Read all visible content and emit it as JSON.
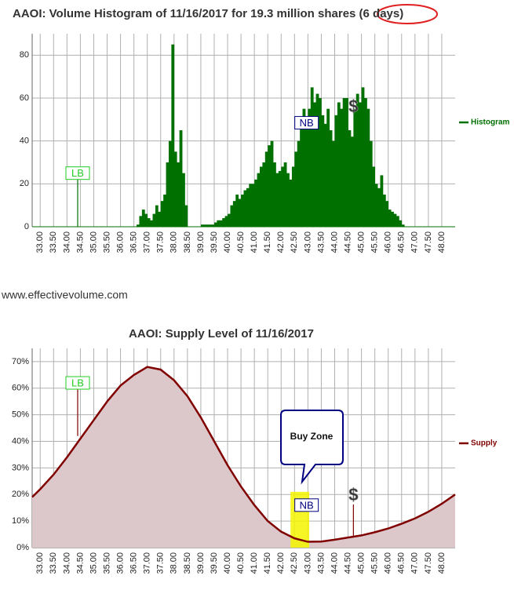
{
  "watermark": "www.effectivevolume.com",
  "chart_data": [
    {
      "type": "histogram",
      "title": "AAOI: Volume Histogram of 11/16/2017 for 19.3 million shares (6 days)",
      "name": "Histogram",
      "color": "#007000",
      "legend": "right",
      "grid": true,
      "bins": [
        36.6,
        36.7,
        36.8,
        36.9,
        37.0,
        37.1,
        37.2,
        37.3,
        37.4,
        37.5,
        37.6,
        37.7,
        37.8,
        37.9,
        38.0,
        38.1,
        38.2,
        38.3,
        38.4,
        38.5,
        38.6,
        38.7,
        38.8,
        38.9,
        39.0,
        39.1,
        39.2,
        39.3,
        39.4,
        39.5,
        39.6,
        39.7,
        39.8,
        39.9,
        40.0,
        40.1,
        40.2,
        40.3,
        40.4,
        40.5,
        40.6,
        40.7,
        40.8,
        40.9,
        41.0,
        41.1,
        41.2,
        41.3,
        41.4,
        41.5,
        41.6,
        41.7,
        41.8,
        41.9,
        42.0,
        42.1,
        42.2,
        42.3,
        42.4,
        42.5,
        42.6,
        42.7,
        42.8,
        42.9,
        43.0,
        43.1,
        43.2,
        43.3,
        43.4,
        43.5,
        43.6,
        43.7,
        43.8,
        43.9,
        44.0,
        44.1,
        44.2,
        44.3,
        44.4,
        44.5,
        44.6,
        44.7,
        44.8,
        44.9,
        45.0,
        45.1,
        45.2,
        45.3,
        45.4,
        45.5,
        45.6,
        45.7,
        45.8,
        45.9,
        46.0,
        46.1,
        46.2,
        46.3,
        46.4,
        46.5,
        46.6
      ],
      "counts": [
        1,
        5,
        8,
        6,
        4,
        3,
        6,
        10,
        7,
        12,
        15,
        30,
        40,
        85,
        35,
        30,
        45,
        25,
        10,
        0,
        0,
        0,
        0,
        0,
        1,
        1,
        1,
        1,
        1,
        2,
        3,
        3,
        4,
        5,
        6,
        10,
        12,
        15,
        13,
        15,
        17,
        18,
        20,
        20,
        22,
        25,
        28,
        30,
        35,
        38,
        40,
        30,
        25,
        26,
        28,
        30,
        25,
        22,
        28,
        35,
        40,
        48,
        55,
        50,
        55,
        65,
        58,
        62,
        60,
        52,
        48,
        55,
        45,
        40,
        52,
        58,
        55,
        60,
        60,
        45,
        42,
        55,
        62,
        58,
        65,
        60,
        55,
        40,
        28,
        20,
        18,
        24,
        15,
        12,
        8,
        7,
        6,
        5,
        3,
        1
      ],
      "xlim": [
        32.7,
        48.5
      ],
      "ylim": [
        0,
        90
      ],
      "yticks": [
        0,
        20,
        40,
        60,
        80
      ],
      "xticks": [
        {
          "value": 33,
          "label": "33.00"
        },
        {
          "value": 33.5,
          "label": "33.50"
        },
        {
          "value": 34,
          "label": "34.00"
        },
        {
          "value": 34.5,
          "label": "34.50"
        },
        {
          "value": 35,
          "label": "35.00"
        },
        {
          "value": 35.5,
          "label": "35.50"
        },
        {
          "value": 36,
          "label": "36.00"
        },
        {
          "value": 36.5,
          "label": "36.50"
        },
        {
          "value": 37,
          "label": "37.00"
        },
        {
          "value": 37.5,
          "label": "37.50"
        },
        {
          "value": 38,
          "label": "38.00"
        },
        {
          "value": 38.5,
          "label": "38.50"
        },
        {
          "value": 39,
          "label": "39.00"
        },
        {
          "value": 39.5,
          "label": "39.50"
        },
        {
          "value": 40,
          "label": "40.00"
        },
        {
          "value": 40.5,
          "label": "40.50"
        },
        {
          "value": 41,
          "label": "41.00"
        },
        {
          "value": 41.5,
          "label": "41.50"
        },
        {
          "value": 42,
          "label": "42.00"
        },
        {
          "value": 42.5,
          "label": "42.50"
        },
        {
          "value": 43,
          "label": "43.00"
        },
        {
          "value": 43.5,
          "label": "43.50"
        },
        {
          "value": 44,
          "label": "44.00"
        },
        {
          "value": 44.5,
          "label": "44.50"
        },
        {
          "value": 45,
          "label": "45.00"
        },
        {
          "value": 45.5,
          "label": "45.50"
        },
        {
          "value": 46,
          "label": "46.00"
        },
        {
          "value": 46.5,
          "label": "46.50"
        },
        {
          "value": 47,
          "label": "47.00"
        },
        {
          "value": 47.5,
          "label": "47.50"
        },
        {
          "value": 48,
          "label": "48.00"
        }
      ],
      "annotations": [
        {
          "text": "LB",
          "x": 34.4,
          "y": 25,
          "base": 0,
          "box": true,
          "color": "#22cc22",
          "line_color": "#007000"
        },
        {
          "text": "NB",
          "x": 42.95,
          "y": 48.5,
          "box": true,
          "color": "#000080"
        },
        {
          "text": "$",
          "x": 44.7,
          "y": 55.5,
          "box": false,
          "color": "#333333"
        }
      ]
    },
    {
      "type": "area",
      "title": "AAOI: Supply Level of 11/16/2017",
      "name": "Supply",
      "color": "#800000",
      "fill": "#dcc7cb",
      "legend": "right",
      "grid": true,
      "x": [
        32.7,
        33.0,
        33.5,
        34.0,
        34.5,
        35.0,
        35.5,
        36.0,
        36.5,
        37.0,
        37.5,
        38.0,
        38.5,
        39.0,
        39.5,
        40.0,
        40.5,
        41.0,
        41.5,
        42.0,
        42.5,
        43.0,
        43.5,
        44.0,
        44.5,
        45.0,
        45.5,
        46.0,
        46.5,
        47.0,
        47.5,
        48.0,
        48.5
      ],
      "values": [
        19,
        22,
        27.5,
        34,
        41,
        48,
        55,
        61,
        65,
        68,
        67,
        63,
        57,
        49,
        40,
        31,
        23,
        16,
        10,
        6,
        3.5,
        2.2,
        2.3,
        3,
        3.8,
        4.6,
        5.8,
        7.2,
        9,
        11,
        13.5,
        16.5,
        20
      ],
      "xlim": [
        32.7,
        48.5
      ],
      "ylim": [
        0,
        75
      ],
      "yticks": [
        {
          "value": 0,
          "label": "0%"
        },
        {
          "value": 10,
          "label": "10%"
        },
        {
          "value": 20,
          "label": "20%"
        },
        {
          "value": 30,
          "label": "30%"
        },
        {
          "value": 40,
          "label": "40%"
        },
        {
          "value": 50,
          "label": "50%"
        },
        {
          "value": 60,
          "label": "60%"
        },
        {
          "value": 70,
          "label": "70%"
        }
      ],
      "xticks": [
        {
          "value": 33,
          "label": "33.00"
        },
        {
          "value": 33.5,
          "label": "33.50"
        },
        {
          "value": 34,
          "label": "34.00"
        },
        {
          "value": 34.5,
          "label": "34.50"
        },
        {
          "value": 35,
          "label": "35.00"
        },
        {
          "value": 35.5,
          "label": "35.50"
        },
        {
          "value": 36,
          "label": "36.00"
        },
        {
          "value": 36.5,
          "label": "36.50"
        },
        {
          "value": 37,
          "label": "37.00"
        },
        {
          "value": 37.5,
          "label": "37.50"
        },
        {
          "value": 38,
          "label": "38.00"
        },
        {
          "value": 38.5,
          "label": "38.50"
        },
        {
          "value": 39,
          "label": "39.00"
        },
        {
          "value": 39.5,
          "label": "39.50"
        },
        {
          "value": 40,
          "label": "40.00"
        },
        {
          "value": 40.5,
          "label": "40.50"
        },
        {
          "value": 41,
          "label": "41.00"
        },
        {
          "value": 41.5,
          "label": "41.50"
        },
        {
          "value": 42,
          "label": "42.00"
        },
        {
          "value": 42.5,
          "label": "42.50"
        },
        {
          "value": 43,
          "label": "43.00"
        },
        {
          "value": 43.5,
          "label": "43.50"
        },
        {
          "value": 44,
          "label": "44.00"
        },
        {
          "value": 44.5,
          "label": "44.50"
        },
        {
          "value": 45,
          "label": "45.00"
        },
        {
          "value": 45.5,
          "label": "45.50"
        },
        {
          "value": 46,
          "label": "46.00"
        },
        {
          "value": 46.5,
          "label": "46.50"
        },
        {
          "value": 47,
          "label": "47.00"
        },
        {
          "value": 47.5,
          "label": "47.50"
        },
        {
          "value": 48,
          "label": "48.00"
        }
      ],
      "highlight": {
        "x": [
          42.35,
          43.05
        ],
        "y": [
          0,
          21
        ],
        "color": "#f5f500"
      },
      "callout": "Buy Zone",
      "annotations": [
        {
          "text": "LB",
          "x": 34.4,
          "y": 62,
          "base": 42,
          "box": true,
          "color": "#22cc22",
          "line_color": "#800000"
        },
        {
          "text": "NB",
          "x": 42.95,
          "y": 16,
          "box": true,
          "color": "#000080"
        },
        {
          "text": "$",
          "x": 44.7,
          "y": 19.5,
          "base": 4,
          "box": false,
          "color": "#333333",
          "line_color": "#800000"
        }
      ]
    }
  ]
}
